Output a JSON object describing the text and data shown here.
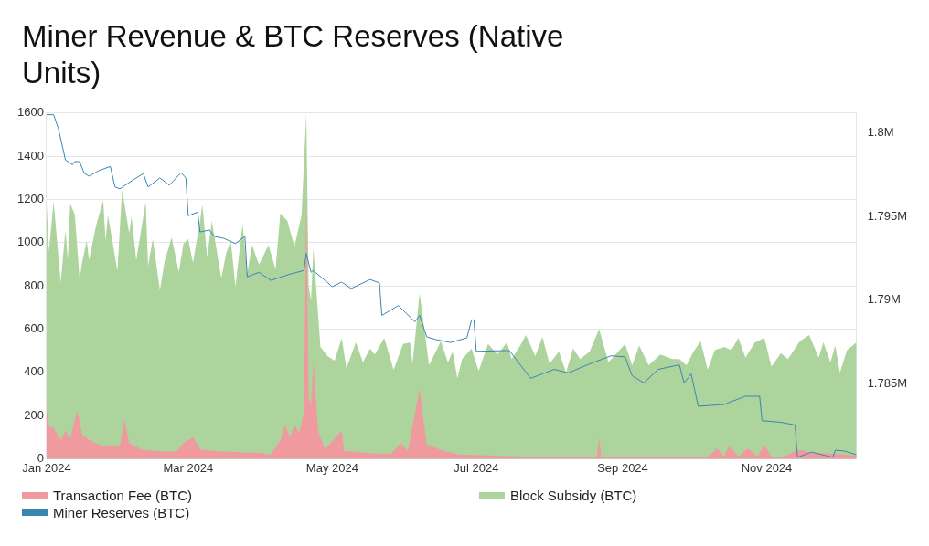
{
  "chart_data": {
    "type": "area",
    "title": "Miner Revenue & BTC Reserves (Native Units)",
    "xlim": [
      "2024-01-01",
      "2024-12-09"
    ],
    "xticks": [
      {
        "value": "2024-01-01",
        "label": "Jan 2024"
      },
      {
        "value": "2024-03-01",
        "label": "Mar 2024"
      },
      {
        "value": "2024-05-01",
        "label": "May 2024"
      },
      {
        "value": "2024-07-01",
        "label": "Jul 2024"
      },
      {
        "value": "2024-09-01",
        "label": "Sep 2024"
      },
      {
        "value": "2024-11-01",
        "label": "Nov 2024"
      }
    ],
    "ylim": [
      0,
      1600
    ],
    "yticks": [
      0,
      200,
      400,
      600,
      800,
      1000,
      1200,
      1400,
      1600
    ],
    "y2lim": [
      1780500,
      1801200
    ],
    "y2ticks": [
      {
        "value": 1785000,
        "label": "1.785M"
      },
      {
        "value": 1790000,
        "label": "1.79M"
      },
      {
        "value": 1795000,
        "label": "1.795M"
      },
      {
        "value": 1800000,
        "label": "1.8M"
      }
    ],
    "grid": "y",
    "legend": "bottom",
    "series": [
      {
        "name": "Transaction Fee (BTC)",
        "color": "#ef9a9e",
        "x": [
          "2024-01-01",
          "2024-01-02",
          "2024-01-04",
          "2024-01-07",
          "2024-01-09",
          "2024-01-11",
          "2024-01-14",
          "2024-01-16",
          "2024-01-19",
          "2024-01-22",
          "2024-01-25",
          "2024-01-29",
          "2024-02-01",
          "2024-02-03",
          "2024-02-05",
          "2024-02-10",
          "2024-02-15",
          "2024-02-20",
          "2024-02-25",
          "2024-02-28",
          "2024-03-03",
          "2024-03-06",
          "2024-03-11",
          "2024-03-16",
          "2024-03-21",
          "2024-03-26",
          "2024-03-31",
          "2024-04-05",
          "2024-04-09",
          "2024-04-11",
          "2024-04-13",
          "2024-04-15",
          "2024-04-17",
          "2024-04-19",
          "2024-04-20",
          "2024-04-21",
          "2024-04-22",
          "2024-04-23",
          "2024-04-25",
          "2024-04-28",
          "2024-05-05",
          "2024-05-06",
          "2024-05-12",
          "2024-05-20",
          "2024-05-26",
          "2024-05-30",
          "2024-06-02",
          "2024-06-07",
          "2024-06-10",
          "2024-06-12",
          "2024-06-17",
          "2024-06-24",
          "2024-07-09",
          "2024-07-29",
          "2024-08-21",
          "2024-08-22",
          "2024-08-23",
          "2024-09-12",
          "2024-10-07",
          "2024-10-11",
          "2024-10-14",
          "2024-10-16",
          "2024-10-20",
          "2024-10-24",
          "2024-10-28",
          "2024-10-31",
          "2024-11-03",
          "2024-11-08",
          "2024-11-15",
          "2024-11-20",
          "2024-12-02",
          "2024-12-09"
        ],
        "values": [
          225,
          149,
          142,
          86,
          128,
          93,
          225,
          114,
          86,
          72,
          58,
          58,
          58,
          183,
          72,
          44,
          37,
          33,
          33,
          72,
          100,
          44,
          37,
          33,
          31,
          28,
          28,
          19,
          86,
          156,
          100,
          156,
          121,
          211,
          1204,
          280,
          253,
          447,
          128,
          44,
          128,
          37,
          31,
          24,
          24,
          72,
          37,
          322,
          65,
          58,
          37,
          19,
          14,
          8,
          6,
          100,
          8,
          6,
          8,
          47,
          10,
          61,
          10,
          49,
          10,
          65,
          8,
          10,
          42,
          28,
          22,
          14
        ]
      },
      {
        "name": "Block Subsidy (BTC)",
        "color": "#add49d",
        "x": [
          "2024-01-01",
          "2024-01-02",
          "2024-01-04",
          "2024-01-07",
          "2024-01-09",
          "2024-01-10",
          "2024-01-11",
          "2024-01-13",
          "2024-01-15",
          "2024-01-16",
          "2024-01-18",
          "2024-01-19",
          "2024-01-22",
          "2024-01-25",
          "2024-01-26",
          "2024-01-27",
          "2024-01-31",
          "2024-02-02",
          "2024-02-05",
          "2024-02-06",
          "2024-02-08",
          "2024-02-12",
          "2024-02-13",
          "2024-02-15",
          "2024-02-18",
          "2024-02-20",
          "2024-02-23",
          "2024-02-26",
          "2024-02-28",
          "2024-03-01",
          "2024-03-03",
          "2024-03-06",
          "2024-03-07",
          "2024-03-09",
          "2024-03-11",
          "2024-03-15",
          "2024-03-17",
          "2024-03-19",
          "2024-03-21",
          "2024-03-24",
          "2024-03-26",
          "2024-03-28",
          "2024-03-31",
          "2024-04-04",
          "2024-04-07",
          "2024-04-09",
          "2024-04-12",
          "2024-04-15",
          "2024-04-18",
          "2024-04-20",
          "2024-04-21",
          "2024-04-22",
          "2024-04-23",
          "2024-04-26",
          "2024-04-29",
          "2024-05-02",
          "2024-05-05",
          "2024-05-07",
          "2024-05-11",
          "2024-05-14",
          "2024-05-17",
          "2024-05-19",
          "2024-05-23",
          "2024-05-27",
          "2024-05-31",
          "2024-06-03",
          "2024-06-04",
          "2024-06-07",
          "2024-06-11",
          "2024-06-16",
          "2024-06-19",
          "2024-06-21",
          "2024-06-23",
          "2024-06-25",
          "2024-06-29",
          "2024-07-02",
          "2024-07-06",
          "2024-07-10",
          "2024-07-14",
          "2024-07-16",
          "2024-07-20",
          "2024-07-22",
          "2024-07-26",
          "2024-07-29",
          "2024-08-01",
          "2024-08-05",
          "2024-08-08",
          "2024-08-11",
          "2024-08-14",
          "2024-08-18",
          "2024-08-22",
          "2024-08-26",
          "2024-09-02",
          "2024-09-05",
          "2024-09-08",
          "2024-09-12",
          "2024-09-17",
          "2024-09-22",
          "2024-09-25",
          "2024-09-28",
          "2024-10-01",
          "2024-10-04",
          "2024-10-07",
          "2024-10-10",
          "2024-10-14",
          "2024-10-17",
          "2024-10-20",
          "2024-10-23",
          "2024-10-27",
          "2024-10-31",
          "2024-11-03",
          "2024-11-07",
          "2024-11-10",
          "2024-11-15",
          "2024-11-19",
          "2024-11-23",
          "2024-11-25",
          "2024-11-28",
          "2024-11-30",
          "2024-12-02",
          "2024-12-05",
          "2024-12-09"
        ],
        "values": [
          1183,
          960,
          1190,
          815,
          1058,
          920,
          1183,
          1128,
          830,
          905,
          1010,
          920,
          1080,
          1197,
          1010,
          1128,
          870,
          1246,
          1044,
          1121,
          920,
          1190,
          892,
          1017,
          780,
          913,
          1024,
          864,
          996,
          1017,
          906,
          1100,
          1176,
          933,
          1100,
          836,
          947,
          1010,
          795,
          1086,
          857,
          989,
          899,
          989,
          878,
          1135,
          1100,
          982,
          1128,
          1600,
          800,
          732,
          975,
          517,
          475,
          454,
          558,
          419,
          538,
          447,
          510,
          482,
          558,
          412,
          531,
          538,
          440,
          767,
          433,
          544,
          447,
          496,
          371,
          461,
          510,
          406,
          531,
          482,
          538,
          461,
          531,
          572,
          475,
          565,
          440,
          496,
          399,
          510,
          461,
          496,
          600,
          447,
          531,
          433,
          524,
          433,
          482,
          461,
          461,
          433,
          496,
          544,
          412,
          503,
          517,
          503,
          558,
          468,
          538,
          558,
          426,
          489,
          461,
          544,
          572,
          468,
          538,
          447,
          524,
          399,
          503,
          538
        ]
      },
      {
        "name": "Miner Reserves (BTC)",
        "type": "line",
        "axis": "y2",
        "color": "#3b86b0",
        "x": [
          "2024-01-01",
          "2024-01-04",
          "2024-01-06",
          "2024-01-09",
          "2024-01-12",
          "2024-01-13",
          "2024-01-15",
          "2024-01-17",
          "2024-01-19",
          "2024-01-23",
          "2024-01-28",
          "2024-01-30",
          "2024-02-01",
          "2024-02-05",
          "2024-02-11",
          "2024-02-13",
          "2024-02-18",
          "2024-02-22",
          "2024-02-27",
          "2024-02-29",
          "2024-03-01",
          "2024-03-05",
          "2024-03-06",
          "2024-03-10",
          "2024-03-12",
          "2024-03-16",
          "2024-03-21",
          "2024-03-25",
          "2024-03-26",
          "2024-03-31",
          "2024-04-05",
          "2024-04-13",
          "2024-04-19",
          "2024-04-20",
          "2024-04-22",
          "2024-04-23",
          "2024-05-01",
          "2024-05-05",
          "2024-05-09",
          "2024-05-17",
          "2024-05-21",
          "2024-05-22",
          "2024-05-29",
          "2024-06-05",
          "2024-06-07",
          "2024-06-10",
          "2024-06-14",
          "2024-06-20",
          "2024-06-27",
          "2024-06-29",
          "2024-06-30",
          "2024-07-01",
          "2024-07-15",
          "2024-07-24",
          "2024-08-03",
          "2024-08-09",
          "2024-08-17",
          "2024-08-27",
          "2024-09-02",
          "2024-09-05",
          "2024-09-10",
          "2024-09-16",
          "2024-09-25",
          "2024-09-27",
          "2024-09-30",
          "2024-10-03",
          "2024-10-14",
          "2024-10-23",
          "2024-10-29",
          "2024-10-30",
          "2024-11-07",
          "2024-11-13",
          "2024-11-14",
          "2024-11-20",
          "2024-11-29",
          "2024-11-30",
          "2024-12-04",
          "2024-12-09"
        ],
        "values": [
          1801100,
          1801100,
          1800270,
          1798390,
          1798100,
          1798300,
          1798280,
          1797580,
          1797420,
          1797740,
          1798000,
          1796770,
          1796660,
          1797040,
          1797580,
          1796770,
          1797310,
          1796880,
          1797630,
          1797310,
          1795050,
          1795260,
          1794080,
          1794190,
          1793810,
          1793700,
          1793380,
          1793810,
          1791390,
          1791660,
          1791180,
          1791550,
          1791770,
          1792790,
          1791660,
          1791770,
          1790800,
          1791070,
          1790690,
          1791230,
          1791020,
          1789080,
          1789670,
          1788700,
          1789080,
          1787790,
          1787630,
          1787460,
          1787730,
          1788810,
          1788810,
          1786930,
          1786980,
          1785310,
          1785850,
          1785640,
          1786120,
          1786660,
          1786600,
          1785470,
          1785040,
          1785850,
          1786120,
          1785040,
          1785580,
          1783640,
          1783750,
          1784240,
          1784240,
          1782780,
          1782680,
          1782520,
          1780580,
          1780900,
          1780580,
          1781010,
          1780960,
          1780740
        ]
      }
    ]
  }
}
